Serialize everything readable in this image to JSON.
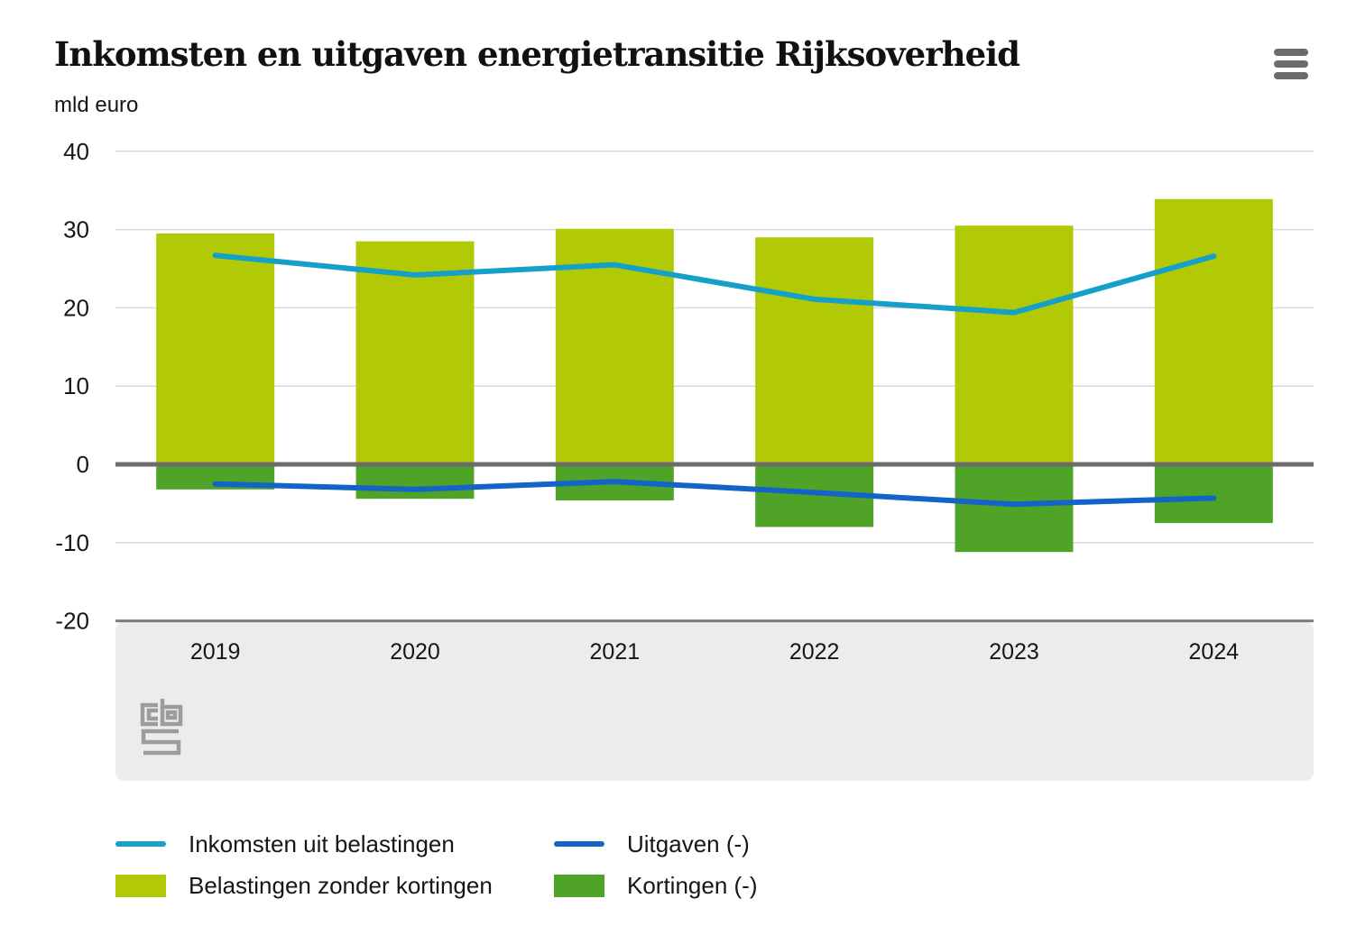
{
  "header": {
    "title": "Inkomsten en uitgaven energietransitie Rijksoverheid",
    "unit_label": "mld euro",
    "menu_icon": "hamburger-icon"
  },
  "chart_data": {
    "type": "bar+line",
    "title": "Inkomsten en uitgaven energietransitie Rijksoverheid",
    "ylabel": "mld euro",
    "xlabel": "",
    "categories": [
      "2019",
      "2020",
      "2021",
      "2022",
      "2023",
      "2024"
    ],
    "ylim": [
      -20,
      40
    ],
    "yticks": [
      40,
      30,
      20,
      10,
      0,
      -10,
      -20
    ],
    "grid": true,
    "legend_position": "bottom",
    "bar_series": [
      {
        "name": "Belastingen zonder kortingen",
        "key": "belastingen-zonder-kortingen",
        "color": "#b1ca05",
        "values": [
          29.5,
          28.5,
          30.1,
          29.0,
          30.5,
          33.9
        ]
      },
      {
        "name": "Kortingen (-)",
        "key": "kortingen",
        "color": "#4fa427",
        "values": [
          -3.2,
          -4.4,
          -4.6,
          -8.0,
          -11.2,
          -7.5
        ]
      }
    ],
    "line_series": [
      {
        "name": "Inkomsten uit belastingen",
        "key": "inkomsten-uit-belastingen",
        "color": "#14a0c9",
        "values": [
          26.7,
          24.2,
          25.5,
          21.1,
          19.4,
          26.6
        ]
      },
      {
        "name": "Uitgaven (-)",
        "key": "uitgaven",
        "color": "#1464c8",
        "values": [
          -2.5,
          -3.2,
          -2.2,
          -3.6,
          -5.1,
          -4.3
        ]
      }
    ],
    "colors": {
      "grid": "#d9d9d9",
      "zero_line": "#6b6b6b",
      "axis_line": "#7b7b7b",
      "band": "#ececec",
      "text": "#161616"
    }
  },
  "legend": {
    "items": [
      {
        "label": "Inkomsten uit belastingen",
        "swatch": "line",
        "color": "#14a0c9"
      },
      {
        "label": "Uitgaven (-)",
        "swatch": "line",
        "color": "#1464c8"
      },
      {
        "label": "Belastingen zonder kortingen",
        "swatch": "rect",
        "color": "#b1ca05"
      },
      {
        "label": "Kortingen (-)",
        "swatch": "rect",
        "color": "#4fa427"
      }
    ]
  },
  "footer": {
    "logo": "cbs-logo"
  }
}
